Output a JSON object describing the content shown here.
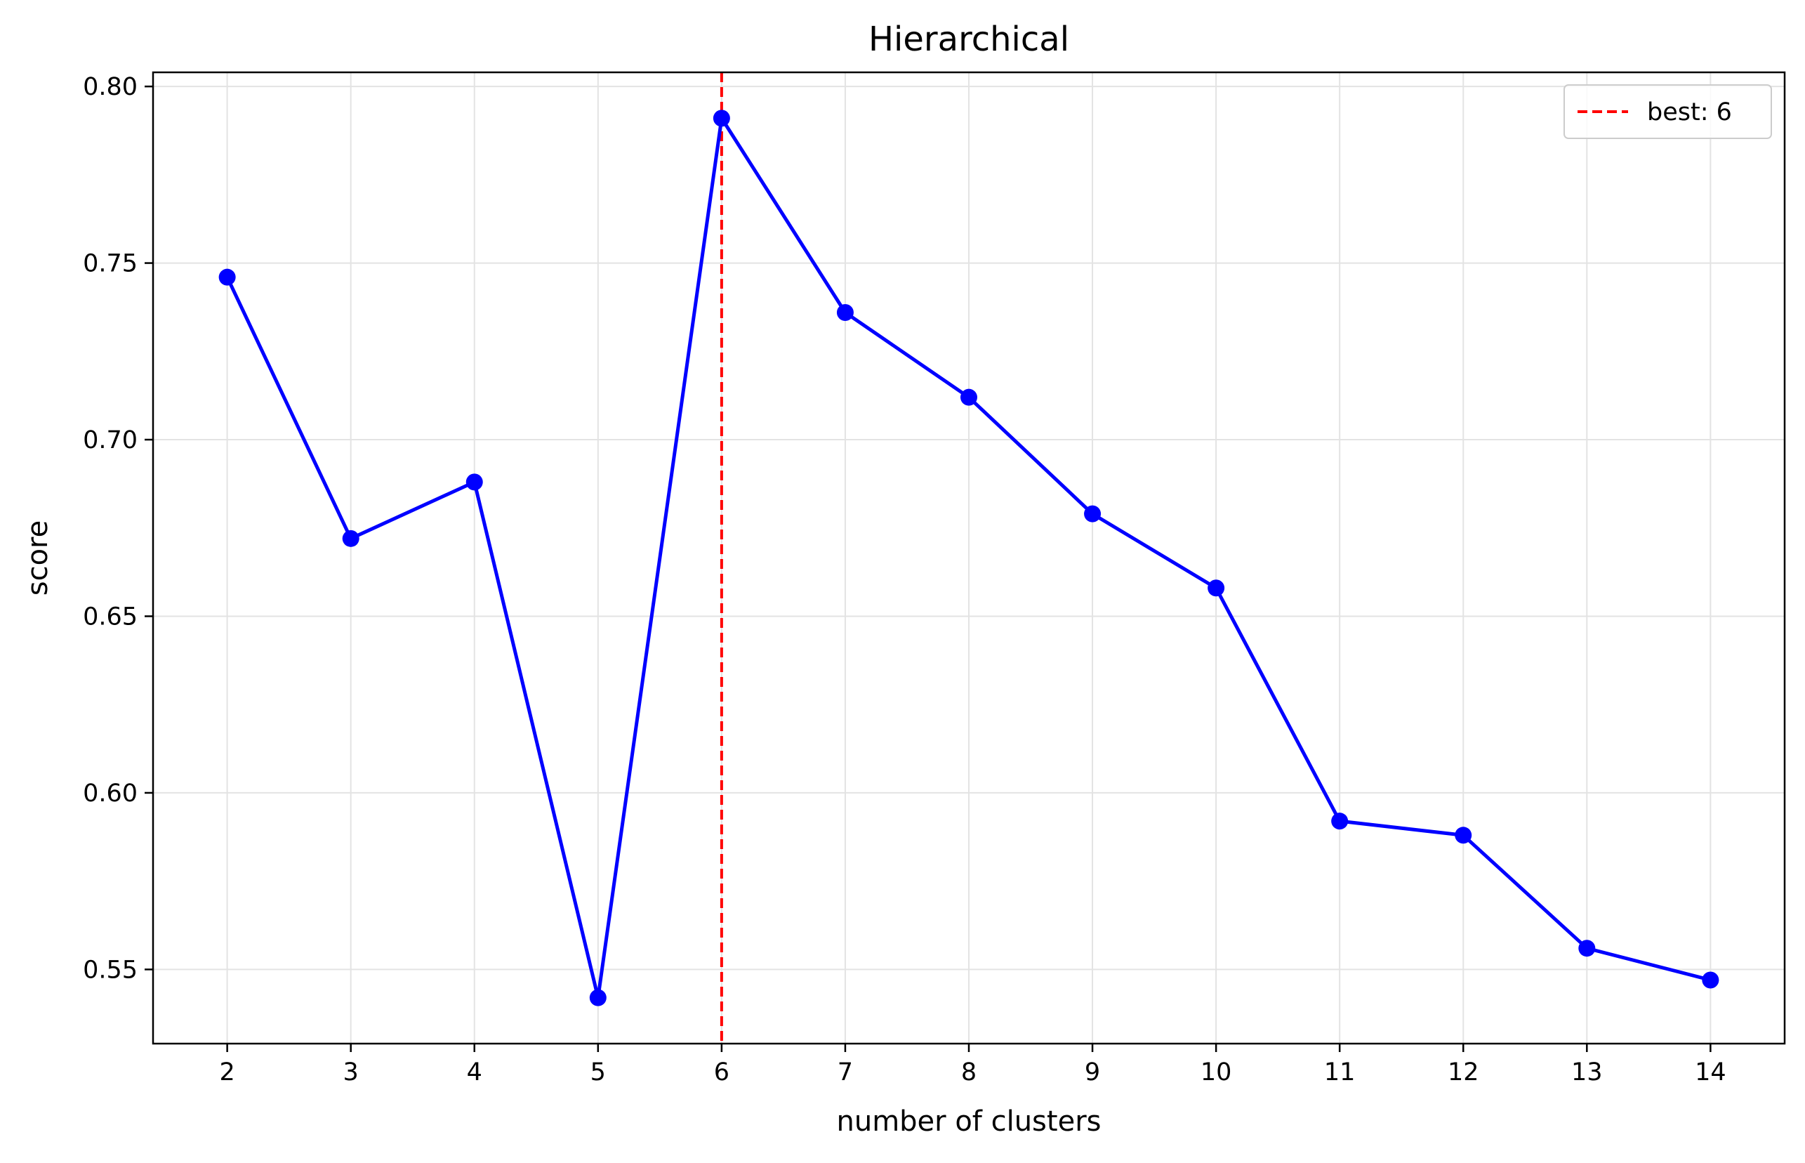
{
  "chart_data": {
    "type": "line",
    "title": "Hierarchical",
    "xlabel": "number of clusters",
    "ylabel": "score",
    "x": [
      2,
      3,
      4,
      5,
      6,
      7,
      8,
      9,
      10,
      11,
      12,
      13,
      14
    ],
    "x_tick_labels": [
      "2",
      "3",
      "4",
      "5",
      "6",
      "7",
      "8",
      "9",
      "10",
      "11",
      "12",
      "13",
      "14"
    ],
    "y_ticks": [
      0.55,
      0.6,
      0.65,
      0.7,
      0.75,
      0.8
    ],
    "y_tick_labels": [
      "0.55",
      "0.60",
      "0.65",
      "0.70",
      "0.75",
      "0.80"
    ],
    "xlim": [
      1.4,
      14.6
    ],
    "ylim": [
      0.529,
      0.804
    ],
    "grid": true,
    "series": [
      {
        "color": "#0000ff",
        "marker": "circle",
        "values": [
          0.746,
          0.672,
          0.688,
          0.542,
          0.791,
          0.736,
          0.712,
          0.679,
          0.658,
          0.592,
          0.588,
          0.556,
          0.547
        ]
      }
    ],
    "reference_line": {
      "orientation": "vertical",
      "x": 6,
      "color": "#ff0000",
      "style": "dashed",
      "label": "best: 6"
    },
    "legend": {
      "position": "top-right",
      "entries": [
        "best: 6"
      ]
    }
  }
}
